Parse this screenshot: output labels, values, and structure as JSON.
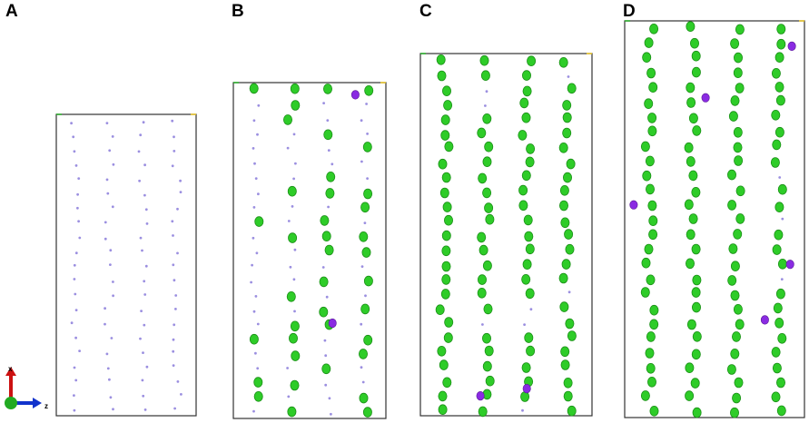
{
  "panels": [
    {
      "label": "A",
      "green_density": 0.0,
      "purple_count": 0
    },
    {
      "label": "B",
      "green_density": 0.45,
      "purple_count": 2
    },
    {
      "label": "C",
      "green_density": 0.9,
      "purple_count": 2
    },
    {
      "label": "D",
      "green_density": 0.97,
      "purple_count": 5
    }
  ],
  "axes": {
    "x_label": "x",
    "z_label": "z"
  },
  "colors": {
    "green_atom": "#2ecc28",
    "green_atom_shade": "#1a8f16",
    "purple_atom": "#8a2be2",
    "small_atom": "#9b8fe0",
    "frame": "#333333",
    "axis_x": "#cc1111",
    "axis_z": "#1133cc",
    "axis_origin": "#22aa22"
  }
}
